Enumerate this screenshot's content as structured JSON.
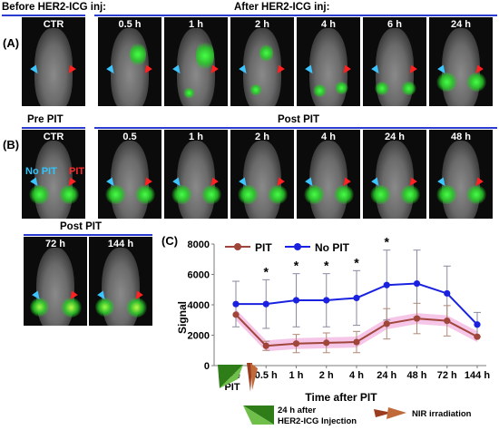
{
  "panel_a": {
    "letter": "(A)",
    "before_header": "Before HER2-ICG inj:",
    "after_header": "After HER2-ICG inj:",
    "frames": [
      "CTR",
      "0.5 h",
      "1 h",
      "2 h",
      "4 h",
      "6 h",
      "24 h"
    ]
  },
  "panel_b": {
    "letter": "(B)",
    "pre_header": "Pre PIT",
    "post_header": "Post PIT",
    "frames": [
      "CTR",
      "0.5",
      "1 h",
      "2 h",
      "4 h",
      "24 h",
      "48 h"
    ],
    "nopit_label": "No PIT",
    "pit_label": "PIT",
    "post_header_2": "Post PIT",
    "frames_2": [
      "72 h",
      "144 h"
    ]
  },
  "panel_c": {
    "letter": "(C)",
    "arrow_legend_1a": "24 h after",
    "arrow_legend_1b": "HER2-ICG Injection",
    "arrow_legend_2": "NIR irradiation",
    "sig_marker": "*"
  },
  "colors": {
    "pit": "#a0453a",
    "nopit": "#1a22e0",
    "pit_band": "#f5c6e8",
    "axis_line": "#2a3ccf"
  },
  "chart_data": {
    "type": "line",
    "title": "",
    "xlabel": "Time after PIT",
    "ylabel": "Signal",
    "categories": [
      "Pre PIT",
      "0.5 h",
      "1 h",
      "2 h",
      "4 h",
      "24 h",
      "48 h",
      "72 h",
      "144 h"
    ],
    "yticks": [
      "0",
      "2000",
      "4000",
      "6000",
      "8000"
    ],
    "ylim": [
      0,
      8000
    ],
    "legend_position": "top-left",
    "series": [
      {
        "name": "PIT",
        "values": [
          3350,
          1300,
          1450,
          1500,
          1550,
          2750,
          3100,
          2950,
          1900
        ],
        "err": [
          0,
          300,
          600,
          650,
          700,
          1000,
          1000,
          1000,
          0
        ]
      },
      {
        "name": "No PIT",
        "values": [
          4050,
          4050,
          4300,
          4300,
          4450,
          5300,
          5400,
          4750,
          2700
        ],
        "err": [
          1500,
          1600,
          1750,
          1750,
          1800,
          2300,
          2200,
          1800,
          800
        ]
      }
    ],
    "significance": [
      "0.5 h",
      "1 h",
      "2 h",
      "4 h",
      "24 h"
    ]
  }
}
